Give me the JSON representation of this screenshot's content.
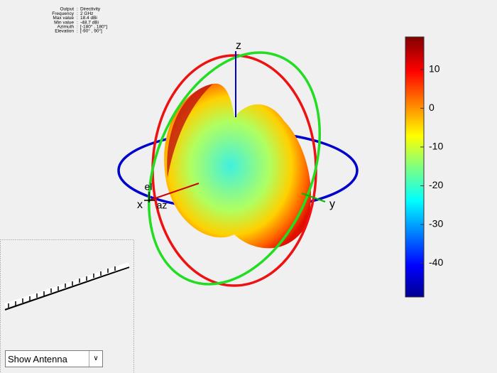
{
  "info": [
    {
      "label": "Output",
      "value": "Directivity"
    },
    {
      "label": "Frequency",
      "value": "2 GHz"
    },
    {
      "label": "Max value",
      "value": "18.4 dBi"
    },
    {
      "label": "Min value",
      "value": "-48.7 dBi"
    },
    {
      "label": "Azimuth",
      "value": "[-180° , 180°]"
    },
    {
      "label": "Elevation",
      "value": "[-90° , 90°]"
    }
  ],
  "colorbar": {
    "lim": [
      -48.7,
      18.4
    ],
    "ticks": [
      10,
      0,
      -10,
      -20,
      -30,
      -40
    ]
  },
  "axes_labels": {
    "z": "z",
    "x": "x",
    "y": "y",
    "el": "el",
    "az": "az"
  },
  "dropdown": "Show Antenna"
}
